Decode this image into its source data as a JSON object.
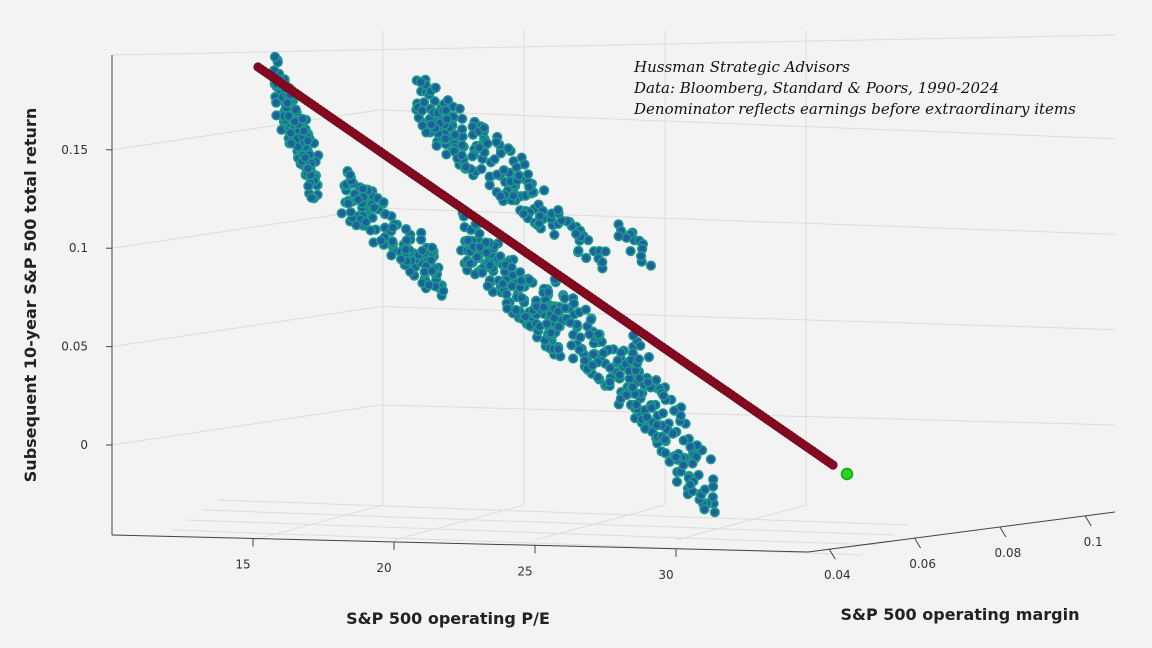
{
  "chart_data": {
    "type": "scatter",
    "title": "",
    "annotations": [
      "Hussman Strategic Advisors",
      "Data: Bloomberg, Standard & Poors, 1990-2024",
      "Denominator reflects earnings before extraordinary items"
    ],
    "xlabel": "S&P 500 operating P/E",
    "ylabel": "S&P 500 operating margin",
    "zlabel": "Subsequent 10-year S&P 500 total return",
    "x_ticks": [
      "15",
      "20",
      "25",
      "30"
    ],
    "y_ticks": [
      "0.04",
      "0.06",
      "0.08",
      "0.1"
    ],
    "z_ticks": [
      "0.15",
      "0.1",
      "0.05",
      "0"
    ],
    "xlim": [
      12,
      35
    ],
    "ylim": [
      0.03,
      0.11
    ],
    "zlim": [
      -0.04,
      0.19
    ],
    "grid": true,
    "series": [
      {
        "color": "#1f5fa0",
        "edge_color": "#1a9a8a",
        "clusters": [
          {
            "x": [
              15.5,
              17.0
            ],
            "z": [
              0.135,
              0.185
            ],
            "margin": 0.055,
            "n": 140
          },
          {
            "x": [
              18.0,
              21.5
            ],
            "z": [
              0.085,
              0.13
            ],
            "margin": 0.05,
            "n": 150
          },
          {
            "x": [
              20.0,
              24.5
            ],
            "z": [
              0.12,
              0.175
            ],
            "margin": 0.085,
            "n": 180
          },
          {
            "x": [
              22.0,
              25.5
            ],
            "z": [
              0.055,
              0.105
            ],
            "margin": 0.065,
            "n": 170
          },
          {
            "x": [
              25.0,
              28.5
            ],
            "z": [
              0.02,
              0.075
            ],
            "margin": 0.06,
            "n": 120
          },
          {
            "x": [
              28.0,
              31.0
            ],
            "z": [
              -0.03,
              0.04
            ],
            "margin": 0.06,
            "n": 110
          },
          {
            "x": [
              24.5,
              26.5
            ],
            "z": [
              0.09,
              0.115
            ],
            "margin": 0.1,
            "n": 28
          },
          {
            "x": [
              26.8,
              28.2
            ],
            "z": [
              0.09,
              0.11
            ],
            "margin": 0.105,
            "n": 14
          }
        ]
      },
      {
        "color": "#8b0a22",
        "fit": {
          "z_start": 0.19,
          "z_end": -0.005,
          "points": 200
        }
      },
      {
        "color": "#22d81a",
        "current": {
          "z": -0.015
        }
      }
    ]
  }
}
